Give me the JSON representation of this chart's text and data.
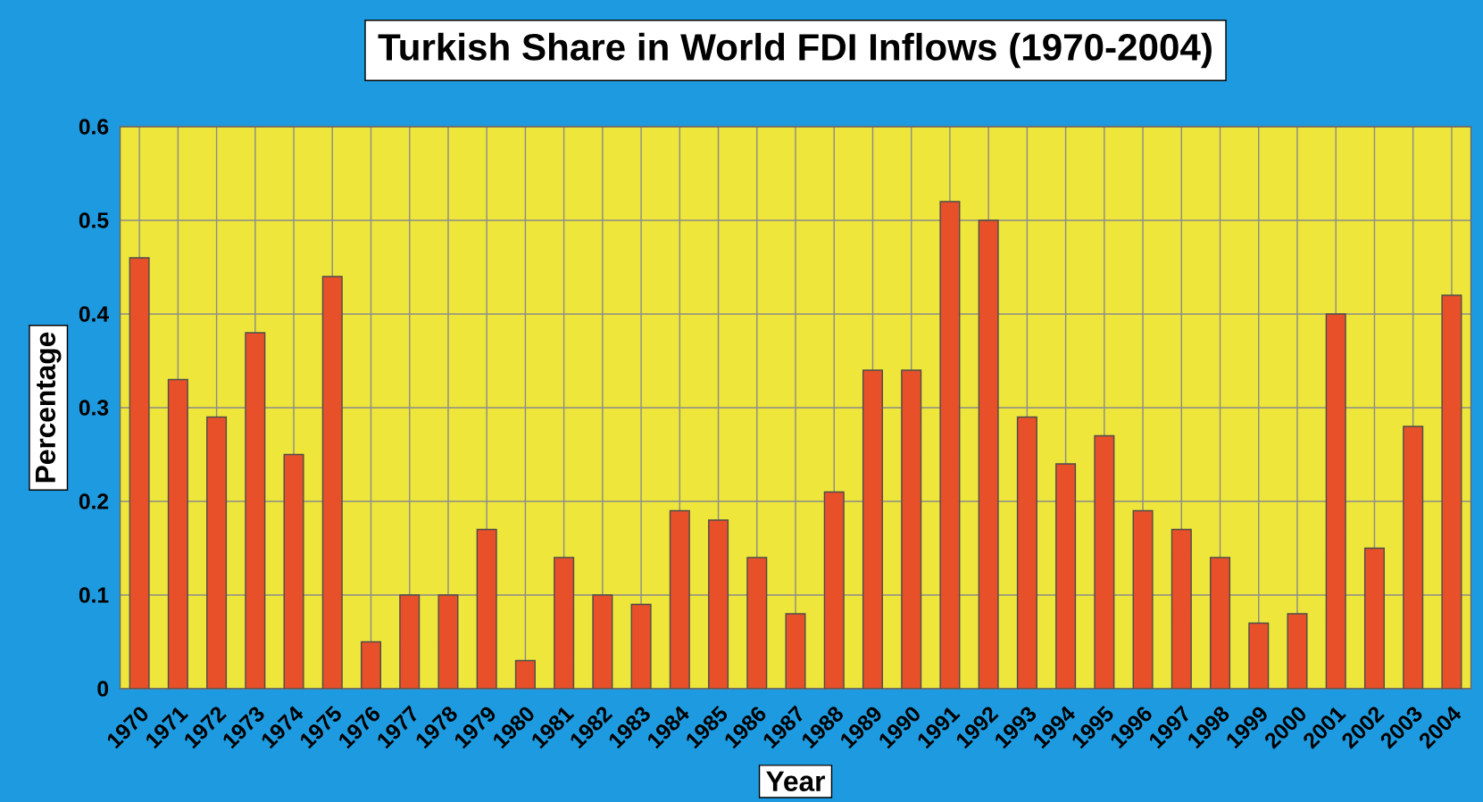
{
  "chart_data": {
    "type": "bar",
    "title": "Turkish Share in World FDI Inflows (1970-2004)",
    "xlabel": "Year",
    "ylabel": "Percentage",
    "categories": [
      "1970",
      "1971",
      "1972",
      "1973",
      "1974",
      "1975",
      "1976",
      "1977",
      "1978",
      "1979",
      "1980",
      "1981",
      "1982",
      "1983",
      "1984",
      "1985",
      "1986",
      "1987",
      "1988",
      "1989",
      "1990",
      "1991",
      "1992",
      "1993",
      "1994",
      "1995",
      "1996",
      "1997",
      "1998",
      "1999",
      "2000",
      "2001",
      "2002",
      "2003",
      "2004"
    ],
    "values": [
      0.46,
      0.33,
      0.29,
      0.38,
      0.25,
      0.44,
      0.05,
      0.1,
      0.1,
      0.17,
      0.03,
      0.14,
      0.1,
      0.09,
      0.19,
      0.18,
      0.14,
      0.08,
      0.21,
      0.34,
      0.34,
      0.52,
      0.5,
      0.29,
      0.24,
      0.27,
      0.19,
      0.17,
      0.14,
      0.07,
      0.08,
      0.4,
      0.15,
      0.28,
      0.42
    ],
    "color": "#e8502a",
    "ylim": [
      0,
      0.6
    ],
    "yticks": [
      0,
      0.1,
      0.2,
      0.3,
      0.4,
      0.5,
      0.6
    ],
    "grid": true
  }
}
